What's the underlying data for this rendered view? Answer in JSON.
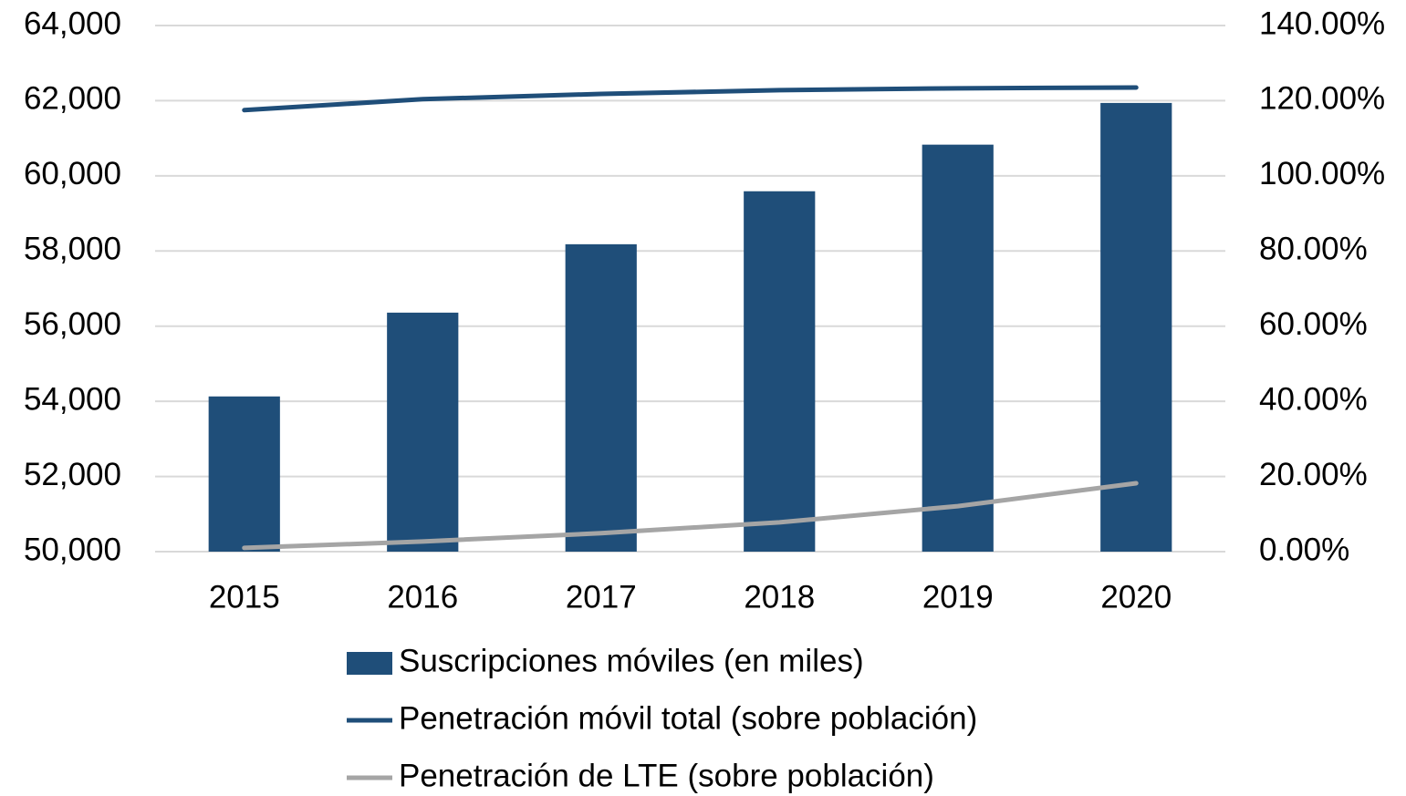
{
  "chart_data": {
    "type": "bar",
    "categories": [
      "2015",
      "2016",
      "2017",
      "2018",
      "2019",
      "2020"
    ],
    "series": [
      {
        "name": "Suscripciones móviles (en miles)",
        "color": "#1f4e79",
        "type": "bar",
        "values": [
          54130,
          56360,
          58180,
          59590,
          60830,
          61940
        ]
      },
      {
        "name": "Penetración móvil total (sobre población)",
        "color": "#1f4e79",
        "type": "line",
        "axis": "y2",
        "values": [
          117.5,
          120.4,
          121.8,
          122.8,
          123.3,
          123.5
        ]
      },
      {
        "name": "Penetración de LTE (sobre población)",
        "color": "#a5a5a5",
        "type": "line",
        "axis": "y2",
        "values": [
          1.0,
          2.7,
          4.9,
          7.8,
          12.1,
          18.2
        ]
      }
    ],
    "ylim": [
      50000,
      64000
    ],
    "yticks": [
      {
        "value": 50000,
        "label": "50,000"
      },
      {
        "value": 52000,
        "label": "52,000"
      },
      {
        "value": 54000,
        "label": "54,000"
      },
      {
        "value": 56000,
        "label": "56,000"
      },
      {
        "value": 58000,
        "label": "58,000"
      },
      {
        "value": 60000,
        "label": "60,000"
      },
      {
        "value": 62000,
        "label": "62,000"
      },
      {
        "value": 64000,
        "label": "64,000"
      }
    ],
    "y2lim": [
      0,
      140
    ],
    "y2ticks": [
      {
        "value": 0,
        "label": "0.00%"
      },
      {
        "value": 20,
        "label": "20.00%"
      },
      {
        "value": 40,
        "label": "40.00%"
      },
      {
        "value": 60,
        "label": "60.00%"
      },
      {
        "value": 80,
        "label": "80.00%"
      },
      {
        "value": 100,
        "label": "100.00%"
      },
      {
        "value": 120,
        "label": "120.00%"
      },
      {
        "value": 140,
        "label": "140.00%"
      }
    ],
    "grid": true,
    "legend": "bottom"
  }
}
